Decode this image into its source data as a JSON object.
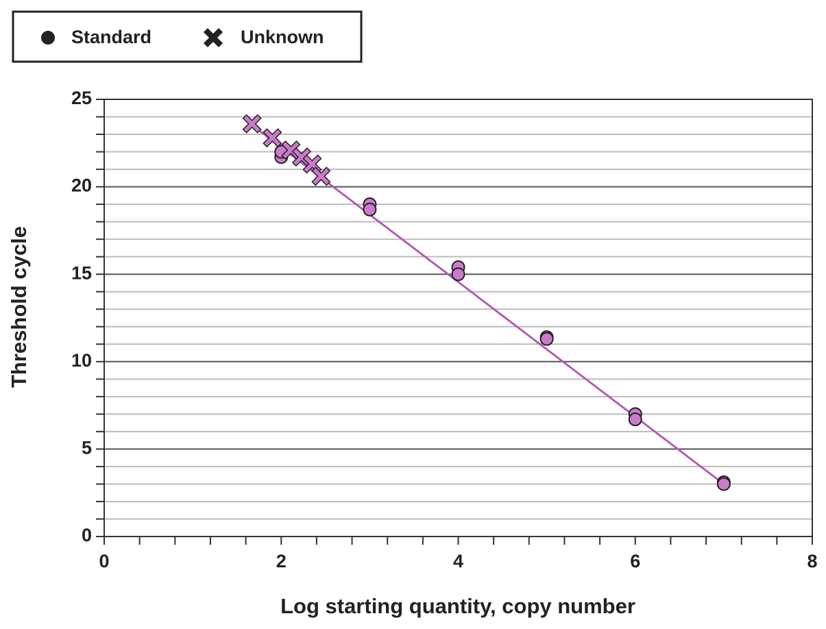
{
  "chart_data": {
    "type": "scatter",
    "xlabel": "Log starting quantity, copy number",
    "ylabel": "Threshold cycle",
    "xlim": [
      0,
      8
    ],
    "ylim": [
      0,
      25
    ],
    "xticks": [
      0,
      2,
      4,
      6,
      8
    ],
    "xminorticks": [
      0.4,
      0.8,
      1.2,
      1.6,
      2.4,
      2.8,
      3.2,
      3.6,
      4.4,
      4.8,
      5.2,
      5.6,
      6.4,
      6.8,
      7.2,
      7.6
    ],
    "yticks": [
      0,
      5,
      10,
      15,
      20,
      25
    ],
    "yminorticks": [
      1,
      2,
      3,
      4,
      6,
      7,
      8,
      9,
      11,
      12,
      13,
      14,
      16,
      17,
      18,
      19,
      21,
      22,
      23,
      24
    ],
    "grid": true,
    "legend": "top-left",
    "legend_marker_color": "#222222",
    "series": [
      {
        "name": "Standard",
        "marker": "circle",
        "color": "#cc7acc",
        "x": [
          2,
          2,
          3,
          3,
          4,
          4,
          5,
          5,
          6,
          6,
          7,
          7
        ],
        "values": [
          21.7,
          22.0,
          19.0,
          18.7,
          15.4,
          15.0,
          11.4,
          11.3,
          7.0,
          6.7,
          3.1,
          3.0
        ]
      },
      {
        "name": "Unknown",
        "marker": "x",
        "color": "#cc7acc",
        "x": [
          1.67,
          1.9,
          2.11,
          2.23,
          2.35,
          2.45
        ],
        "values": [
          23.6,
          22.8,
          22.1,
          21.7,
          21.3,
          20.6
        ]
      }
    ],
    "fit_line": {
      "color": "#b45cb4",
      "x": [
        1.6,
        7.0
      ],
      "values": [
        23.8,
        3.0
      ]
    }
  }
}
